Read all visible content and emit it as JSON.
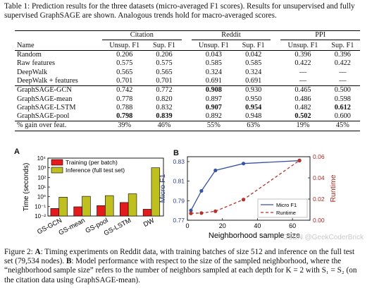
{
  "table": {
    "caption": "Table 1: Prediction results for the three datasets (micro-averaged F1 scores). Results for unsupervised and fully supervised GraphSAGE are shown. Analogous trends hold for macro-averaged scores.",
    "groups": [
      "Citation",
      "Reddit",
      "PPI"
    ],
    "header": [
      "Name",
      "Unsup. F1",
      "Sup. F1",
      "Unsup. F1",
      "Sup. F1",
      "Unsup. F1",
      "Sup. F1"
    ],
    "rows_baselines": [
      [
        "Random",
        "0.206",
        "0.206",
        "0.043",
        "0.042",
        "0.396",
        "0.396"
      ],
      [
        "Raw features",
        "0.575",
        "0.575",
        "0.585",
        "0.585",
        "0.422",
        "0.422"
      ],
      [
        "DeepWalk",
        "0.565",
        "0.565",
        "0.324",
        "0.324",
        "—",
        "—"
      ],
      [
        "DeepWalk + features",
        "0.701",
        "0.701",
        "0.691",
        "0.691",
        "—",
        "—"
      ]
    ],
    "rows_graphsage": [
      [
        "GraphSAGE-GCN",
        "0.742",
        "0.772",
        "0.908",
        "0.930",
        "0.465",
        "0.500"
      ],
      [
        "GraphSAGE-mean",
        "0.778",
        "0.820",
        "0.897",
        "0.950",
        "0.486",
        "0.598"
      ],
      [
        "GraphSAGE-LSTM",
        "0.788",
        "0.832",
        "0.907",
        "0.954",
        "0.482",
        "0.612"
      ],
      [
        "GraphSAGE-pool",
        "0.798",
        "0.839",
        "0.892",
        "0.948",
        "0.502",
        "0.600"
      ]
    ],
    "bold_cells": [
      [
        0,
        3
      ],
      [
        2,
        3
      ],
      [
        2,
        4
      ],
      [
        2,
        6
      ],
      [
        3,
        1
      ],
      [
        3,
        2
      ],
      [
        3,
        5
      ]
    ],
    "gain_row": [
      "% gain over feat.",
      "39%",
      "46%",
      "55%",
      "63%",
      "19%",
      "45%"
    ]
  },
  "chart_data": [
    {
      "type": "bar",
      "panel": "A",
      "ylabel": "Time (seconds)",
      "yscale": "log",
      "ylim": [
        0.01,
        10000
      ],
      "ytick_labels": [
        "10⁻²",
        "10⁻¹",
        "10⁰",
        "10¹",
        "10²",
        "10³",
        "10⁴"
      ],
      "categories": [
        "GS-GCN",
        "GS-mean",
        "GS-pool",
        "GS-LSTM",
        "DW"
      ],
      "series": [
        {
          "name": "Training (per batch)",
          "color": "#e41a1c",
          "values": [
            0.06,
            0.09,
            0.12,
            0.25,
            0.05
          ]
        },
        {
          "name": "Inference (full test set)",
          "color": "#bfbf1f",
          "values": [
            0.9,
            1.1,
            1.3,
            2.0,
            1000
          ]
        }
      ],
      "legend_position": "top-left"
    },
    {
      "type": "line",
      "panel": "B",
      "xlabel": "Neighborhood sample size",
      "x": [
        2,
        8,
        16,
        32,
        64
      ],
      "xticks": [
        0,
        20,
        40,
        60
      ],
      "xlim": [
        0,
        70
      ],
      "series": [
        {
          "name": "Micro F1",
          "color": "#3a52a3",
          "style": "solid",
          "axis": "left",
          "values": [
            0.78,
            0.8,
            0.821,
            0.828,
            0.831
          ]
        },
        {
          "name": "Runtime",
          "color": "#b5332a",
          "style": "dashed",
          "axis": "right",
          "values": [
            0.0065,
            0.0068,
            0.0085,
            0.0195,
            0.0565
          ]
        }
      ],
      "ylabel_left": "Micro F1",
      "ylim_left": [
        0.77,
        0.835
      ],
      "yticks_left": [
        "0.77",
        "0.79",
        "0.81",
        "0.83"
      ],
      "ylabel_right": "Runtime",
      "ylim_right": [
        0,
        0.06
      ],
      "yticks_right": [
        "0.00",
        "0.02",
        "0.04",
        "0.06"
      ],
      "legend_position": "bottom-right"
    }
  ],
  "figure": {
    "caption_parts": [
      {
        "t": "Figure 2: ",
        "b": false
      },
      {
        "t": "A",
        "b": true
      },
      {
        "t": ": Timing experiments on Reddit data, with training batches of size 512 and inference on the full test set (79,534 nodes). ",
        "b": false
      },
      {
        "t": "B",
        "b": true
      },
      {
        "t": ": Model performance with respect to the size of the sampled neighborhood, where the “neighborhood sample size” refers to the number of neighbors sampled at each depth for K = 2 with S₁ = S₂ (on the citation data using GraphSAGE-mean).",
        "b": false
      }
    ]
  },
  "watermark": "CSDN @GeekCoderBrick"
}
